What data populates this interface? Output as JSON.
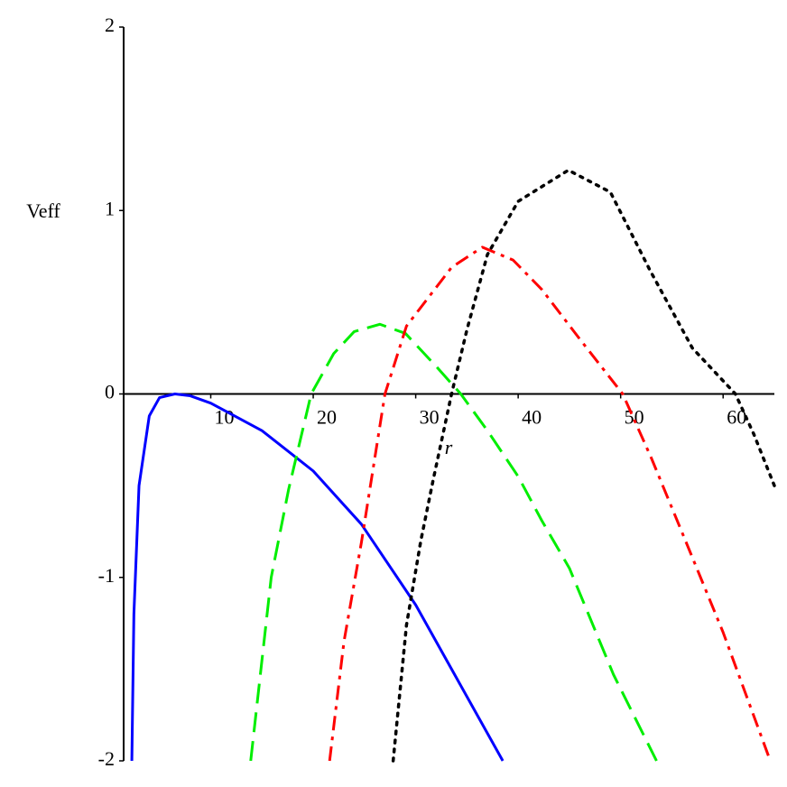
{
  "chart_data": {
    "type": "line",
    "x_label": "r",
    "y_label": "Veff",
    "xlim": [
      1.5,
      65
    ],
    "ylim": [
      -2,
      2
    ],
    "xticks": [
      10,
      20,
      30,
      40,
      50,
      60
    ],
    "yticks": [
      -2,
      -1,
      0,
      1,
      2
    ],
    "series": [
      {
        "color": "#0000ff",
        "style": "solid",
        "x": [
          2.3,
          2.5,
          3,
          4,
          5,
          6.5,
          8,
          10,
          15,
          20,
          24.7,
          30,
          35,
          38.5
        ],
        "values": [
          -2,
          -1.2,
          -0.5,
          -0.12,
          -0.02,
          0,
          -0.01,
          -0.05,
          -0.2,
          -0.42,
          -0.71,
          -1.15,
          -1.65,
          -2
        ]
      },
      {
        "color": "#00ee00",
        "style": "dash",
        "x": [
          13.9,
          15,
          15.9,
          17.6,
          19.8,
          22,
          24,
          26.5,
          29,
          32,
          34.4,
          37,
          40,
          42.3,
          45,
          49.3,
          53.5
        ],
        "values": [
          -2,
          -1.45,
          -1.0,
          -0.52,
          0,
          0.22,
          0.34,
          0.38,
          0.33,
          0.15,
          0,
          -0.2,
          -0.45,
          -0.69,
          -0.95,
          -1.53,
          -2
        ]
      },
      {
        "color": "#ff0000",
        "style": "dashdot",
        "x": [
          21.6,
          23,
          24.7,
          27,
          29.1,
          33.5,
          36.5,
          39.5,
          42.3,
          46,
          50.2,
          53,
          56.4,
          60,
          64.6
        ],
        "values": [
          -2,
          -1.35,
          -0.81,
          0,
          0.37,
          0.69,
          0.8,
          0.73,
          0.57,
          0.3,
          0,
          -0.35,
          -0.81,
          -1.3,
          -2
        ]
      },
      {
        "color": "#000000",
        "style": "dot",
        "x": [
          27.8,
          29.1,
          30.5,
          31.7,
          33.5,
          35,
          37,
          40,
          44.9,
          49,
          52.9,
          57,
          61.2,
          63,
          65
        ],
        "values": [
          -2,
          -1.26,
          -0.8,
          -0.47,
          0,
          0.35,
          0.76,
          1.05,
          1.22,
          1.1,
          0.67,
          0.25,
          0,
          -0.22,
          -0.5
        ]
      }
    ]
  }
}
